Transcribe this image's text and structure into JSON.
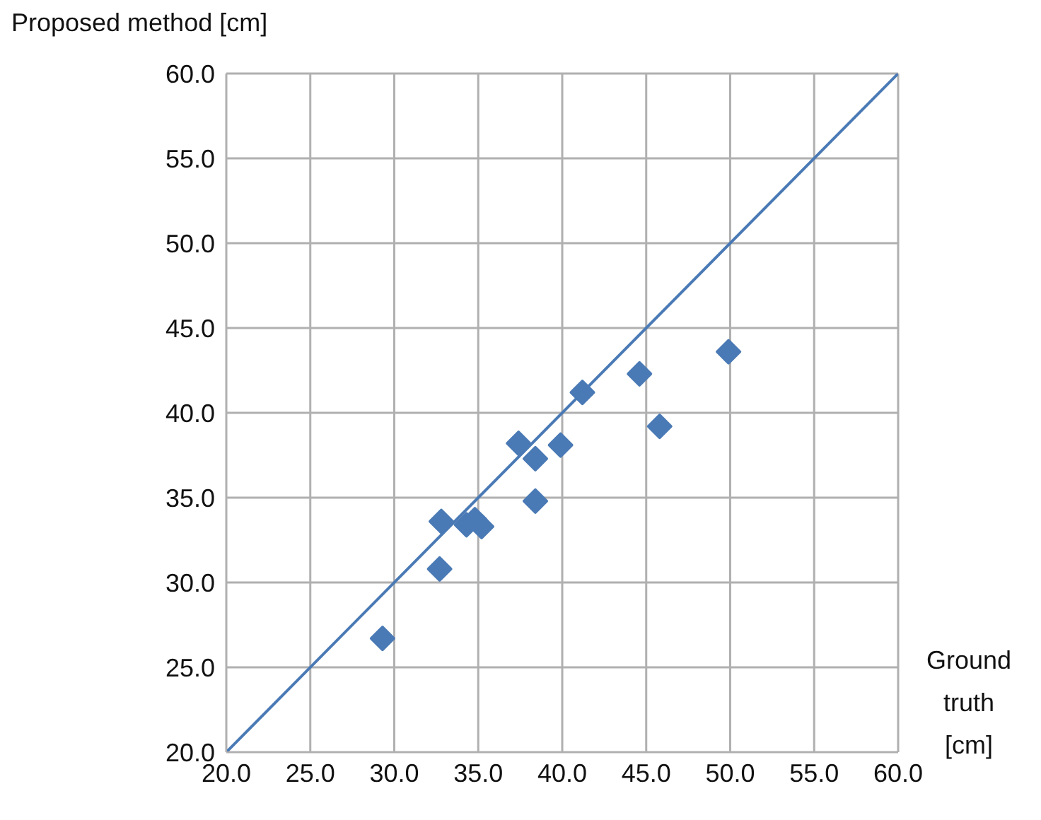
{
  "chart_data": {
    "type": "scatter",
    "xlabel": "Ground truth [cm]",
    "ylabel": "Proposed method [cm]",
    "xlim": [
      20,
      60
    ],
    "ylim": [
      20,
      60
    ],
    "xticks": [
      {
        "value": 20,
        "label": "20.0"
      },
      {
        "value": 25,
        "label": "25.0"
      },
      {
        "value": 30,
        "label": "30.0"
      },
      {
        "value": 35,
        "label": "35.0"
      },
      {
        "value": 40,
        "label": "40.0"
      },
      {
        "value": 45,
        "label": "45.0"
      },
      {
        "value": 50,
        "label": "50.0"
      },
      {
        "value": 55,
        "label": "55.0"
      },
      {
        "value": 60,
        "label": "60.0"
      }
    ],
    "yticks": [
      {
        "value": 20,
        "label": "20.0"
      },
      {
        "value": 25,
        "label": "25.0"
      },
      {
        "value": 30,
        "label": "30.0"
      },
      {
        "value": 35,
        "label": "35.0"
      },
      {
        "value": 40,
        "label": "40.0"
      },
      {
        "value": 45,
        "label": "45.0"
      },
      {
        "value": 50,
        "label": "50.0"
      },
      {
        "value": 55,
        "label": "55.0"
      },
      {
        "value": 60,
        "label": "60.0"
      }
    ],
    "grid": true,
    "series": [
      {
        "marker": "diamond",
        "color": "#4a7ab5",
        "x": [
          29.3,
          32.7,
          32.8,
          34.3,
          34.8,
          35.2,
          37.4,
          38.4,
          38.4,
          39.9,
          41.2,
          44.6,
          45.8,
          49.9
        ],
        "values": [
          26.7,
          30.8,
          33.6,
          33.4,
          33.7,
          33.3,
          38.2,
          37.3,
          34.8,
          38.1,
          41.2,
          42.3,
          39.2,
          43.6
        ]
      },
      {
        "type": "line",
        "color": "#4a7ab5",
        "x": [
          20,
          60
        ],
        "values": [
          20,
          60
        ]
      }
    ]
  }
}
